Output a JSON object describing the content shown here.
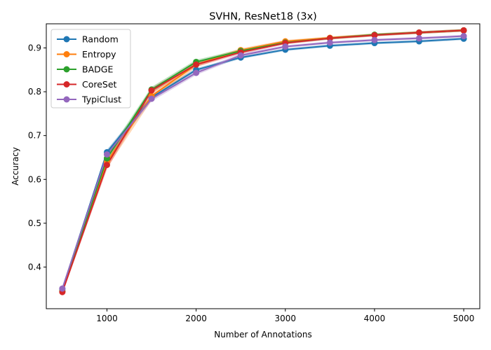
{
  "chart_data": {
    "type": "line",
    "title": "SVHN, ResNet18 (3x)",
    "xlabel": "Number of Annotations",
    "ylabel": "Accuracy",
    "x": [
      500,
      1000,
      1500,
      2000,
      2500,
      3000,
      3500,
      4000,
      4500,
      5000
    ],
    "xlim": [
      320,
      5180
    ],
    "ylim": [
      0.305,
      0.955
    ],
    "xticks": [
      1000,
      2000,
      3000,
      4000,
      5000
    ],
    "yticks": [
      0.4,
      0.5,
      0.6,
      0.7,
      0.8,
      0.9
    ],
    "xtick_labels": [
      "1000",
      "2000",
      "3000",
      "4000",
      "5000"
    ],
    "ytick_labels": [
      "0.4",
      "0.5",
      "0.6",
      "0.7",
      "0.8",
      "0.9"
    ],
    "grid": false,
    "legend_position": "top-left",
    "series": [
      {
        "name": "Random",
        "color": "#1f77b4",
        "values": [
          0.35,
          0.662,
          0.787,
          0.85,
          0.878,
          0.896,
          0.905,
          0.911,
          0.915,
          0.921
        ],
        "band": [
          0.004,
          0.006,
          0.005,
          0.004,
          0.003,
          0.003,
          0.003,
          0.003,
          0.003,
          0.003
        ]
      },
      {
        "name": "Entropy",
        "color": "#ff7f0e",
        "values": [
          0.345,
          0.64,
          0.79,
          0.862,
          0.895,
          0.915,
          0.923,
          0.93,
          0.935,
          0.94
        ],
        "band": [
          0.004,
          0.014,
          0.01,
          0.006,
          0.004,
          0.003,
          0.003,
          0.003,
          0.003,
          0.003
        ]
      },
      {
        "name": "BADGE",
        "color": "#2ca02c",
        "values": [
          0.345,
          0.648,
          0.805,
          0.868,
          0.893,
          0.912,
          0.922,
          0.93,
          0.935,
          0.94
        ],
        "band": [
          0.004,
          0.01,
          0.006,
          0.005,
          0.004,
          0.003,
          0.003,
          0.003,
          0.003,
          0.003
        ]
      },
      {
        "name": "CoreSet",
        "color": "#d62728",
        "values": [
          0.343,
          0.633,
          0.803,
          0.862,
          0.89,
          0.911,
          0.922,
          0.929,
          0.935,
          0.94
        ],
        "band": [
          0.004,
          0.01,
          0.006,
          0.005,
          0.004,
          0.003,
          0.003,
          0.003,
          0.003,
          0.003
        ]
      },
      {
        "name": "TypiClust",
        "color": "#9467bd",
        "values": [
          0.351,
          0.657,
          0.784,
          0.843,
          0.883,
          0.903,
          0.912,
          0.918,
          0.922,
          0.927
        ],
        "band": [
          0.004,
          0.008,
          0.006,
          0.005,
          0.004,
          0.003,
          0.003,
          0.003,
          0.003,
          0.003
        ]
      }
    ]
  }
}
